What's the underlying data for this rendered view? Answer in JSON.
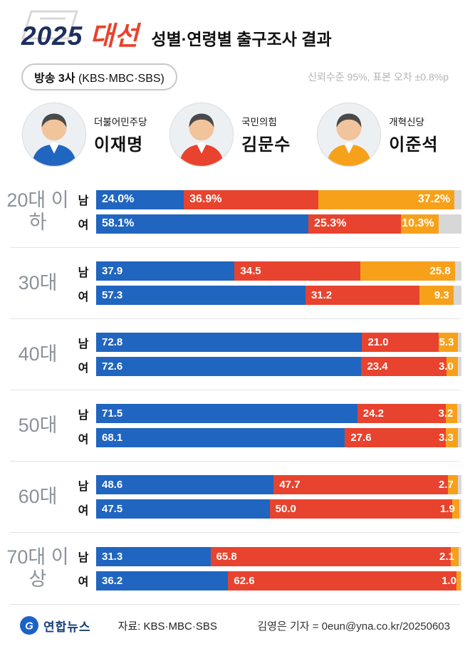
{
  "header": {
    "title_year": "2025",
    "title_word": "대선",
    "title_rest": "성별·연령별 출구조사 결과",
    "badge_title": "방송 3사",
    "badge_paren": "(KBS·MBC·SBS)",
    "confidence": "신뢰수준 95%, 표본 오차 ±0.8%p"
  },
  "candidates": [
    {
      "party": "더불어민주당",
      "name": "이재명",
      "color": "#2065c0"
    },
    {
      "party": "국민의힘",
      "name": "김문수",
      "color": "#e8432e"
    },
    {
      "party": "개혁신당",
      "name": "이준석",
      "color": "#f7a11b"
    }
  ],
  "chart_data": {
    "type": "bar",
    "orientation": "horizontal-stacked",
    "unit": "%",
    "legend": [
      "더불어민주당 이재명",
      "국민의힘 김문수",
      "개혁신당 이준석"
    ],
    "segment_colors": [
      "#2065c0",
      "#e8432e",
      "#f7a11b"
    ],
    "remainder_color": "#d7d7d7",
    "xlim": [
      0,
      100
    ],
    "groups": [
      {
        "age": "20대 이하",
        "rows": [
          {
            "gender": "남",
            "values": [
              24.0,
              36.9,
              37.2
            ],
            "labels": [
              "24.0%",
              "36.9%",
              "37.2%"
            ]
          },
          {
            "gender": "여",
            "values": [
              58.1,
              25.3,
              10.3
            ],
            "labels": [
              "58.1%",
              "25.3%",
              "10.3%"
            ]
          }
        ]
      },
      {
        "age": "30대",
        "rows": [
          {
            "gender": "남",
            "values": [
              37.9,
              34.5,
              25.8
            ],
            "labels": [
              "37.9",
              "34.5",
              "25.8"
            ]
          },
          {
            "gender": "여",
            "values": [
              57.3,
              31.2,
              9.3
            ],
            "labels": [
              "57.3",
              "31.2",
              "9.3"
            ]
          }
        ]
      },
      {
        "age": "40대",
        "rows": [
          {
            "gender": "남",
            "values": [
              72.8,
              21.0,
              5.3
            ],
            "labels": [
              "72.8",
              "21.0",
              "5.3"
            ]
          },
          {
            "gender": "여",
            "values": [
              72.6,
              23.4,
              3.0
            ],
            "labels": [
              "72.6",
              "23.4",
              "3.0"
            ]
          }
        ]
      },
      {
        "age": "50대",
        "rows": [
          {
            "gender": "남",
            "values": [
              71.5,
              24.2,
              3.2
            ],
            "labels": [
              "71.5",
              "24.2",
              "3.2"
            ]
          },
          {
            "gender": "여",
            "values": [
              68.1,
              27.6,
              3.3
            ],
            "labels": [
              "68.1",
              "27.6",
              "3.3"
            ]
          }
        ]
      },
      {
        "age": "60대",
        "rows": [
          {
            "gender": "남",
            "values": [
              48.6,
              47.7,
              2.7
            ],
            "labels": [
              "48.6",
              "47.7",
              "2.7"
            ]
          },
          {
            "gender": "여",
            "values": [
              47.5,
              50.0,
              1.9
            ],
            "labels": [
              "47.5",
              "50.0",
              "1.9"
            ]
          }
        ]
      },
      {
        "age": "70대 이상",
        "rows": [
          {
            "gender": "남",
            "values": [
              31.3,
              65.8,
              2.1
            ],
            "labels": [
              "31.3",
              "65.8",
              "2.1"
            ]
          },
          {
            "gender": "여",
            "values": [
              36.2,
              62.6,
              1.0
            ],
            "labels": [
              "36.2",
              "62.6",
              "1.0"
            ]
          }
        ]
      }
    ]
  },
  "footer": {
    "logo_text": "연합뉴스",
    "logo_color": "#1a62c8",
    "source": "자료: KBS·MBC·SBS",
    "credit": "김영은 기자 = 0eun@yna.co.kr/20250603"
  }
}
